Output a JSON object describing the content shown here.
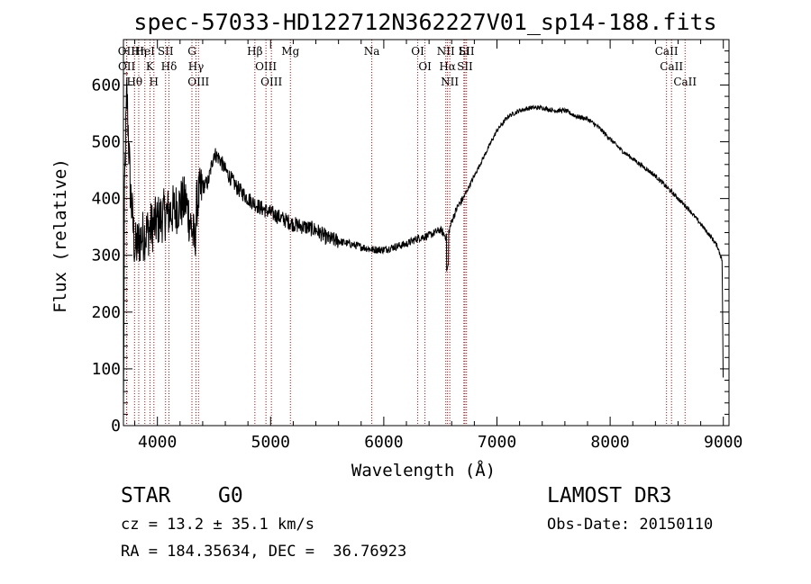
{
  "chart_data": {
    "type": "line",
    "title": "spec-57033-HD122712N362227V01_sp14-188.fits",
    "xlabel": "Wavelength (Å)",
    "ylabel": "Flux (relative)",
    "xlim": [
      3700,
      9050
    ],
    "ylim": [
      0,
      680
    ],
    "xticks": [
      4000,
      5000,
      6000,
      7000,
      8000,
      9000
    ],
    "yticks": [
      0,
      100,
      200,
      300,
      400,
      500,
      600
    ],
    "spectrum_anchor_points": {
      "x": [
        3700,
        3710,
        3730,
        3760,
        3800,
        3850,
        3900,
        3950,
        4000,
        4050,
        4100,
        4150,
        4200,
        4250,
        4300,
        4330,
        4350,
        4400,
        4450,
        4500,
        4550,
        4600,
        4700,
        4800,
        4900,
        5000,
        5100,
        5200,
        5300,
        5400,
        5500,
        5600,
        5700,
        5800,
        5900,
        6000,
        6100,
        6200,
        6300,
        6400,
        6500,
        6560,
        6600,
        6650,
        6700,
        6750,
        6800,
        6900,
        7000,
        7100,
        7200,
        7300,
        7400,
        7500,
        7600,
        7700,
        7800,
        7900,
        8000,
        8100,
        8200,
        8300,
        8400,
        8500,
        8600,
        8700,
        8800,
        8900,
        8950,
        8990,
        9000
      ],
      "y": [
        20,
        420,
        590,
        420,
        310,
        330,
        340,
        350,
        360,
        370,
        375,
        380,
        390,
        395,
        350,
        320,
        395,
        420,
        430,
        480,
        470,
        450,
        420,
        400,
        385,
        375,
        365,
        355,
        350,
        345,
        330,
        325,
        320,
        315,
        310,
        310,
        315,
        320,
        330,
        335,
        345,
        330,
        360,
        385,
        400,
        420,
        440,
        480,
        520,
        545,
        555,
        560,
        560,
        555,
        555,
        545,
        540,
        525,
        505,
        485,
        470,
        455,
        440,
        420,
        400,
        380,
        355,
        330,
        315,
        290,
        30
      ]
    },
    "spectral_lines": [
      {
        "label": "Hθ",
        "wavelength": 3798
      },
      {
        "label": "OII",
        "wavelength": 3727
      },
      {
        "label": "OII",
        "wavelength": 3729
      },
      {
        "label": "Hη",
        "wavelength": 3835
      },
      {
        "label": "HeI",
        "wavelength": 3889
      },
      {
        "label": "K",
        "wavelength": 3934
      },
      {
        "label": "H",
        "wavelength": 3969
      },
      {
        "label": "SII",
        "wavelength": 4072
      },
      {
        "label": "Hδ",
        "wavelength": 4102
      },
      {
        "label": "G",
        "wavelength": 4305
      },
      {
        "label": "Hγ",
        "wavelength": 4341
      },
      {
        "label": "OIII",
        "wavelength": 4363
      },
      {
        "label": "Hβ",
        "wavelength": 4861
      },
      {
        "label": "OIII",
        "wavelength": 4959
      },
      {
        "label": "OIII",
        "wavelength": 5007
      },
      {
        "label": "Mg",
        "wavelength": 5175
      },
      {
        "label": "Na",
        "wavelength": 5894
      },
      {
        "label": "OI",
        "wavelength": 6300
      },
      {
        "label": "OI",
        "wavelength": 6364
      },
      {
        "label": "NII",
        "wavelength": 6548
      },
      {
        "label": "Hα",
        "wavelength": 6563
      },
      {
        "label": "NII",
        "wavelength": 6583
      },
      {
        "label": "Li",
        "wavelength": 6708
      },
      {
        "label": "SII",
        "wavelength": 6717
      },
      {
        "label": "SII",
        "wavelength": 6731
      },
      {
        "label": "CaII",
        "wavelength": 8498
      },
      {
        "label": "CaII",
        "wavelength": 8542
      },
      {
        "label": "CaII",
        "wavelength": 8662
      }
    ]
  },
  "info": {
    "class_label": "STAR",
    "subclass": "G0",
    "redshift": "cz = 13.2 ± 35.1 km/s",
    "coords": "RA = 184.35634, DEC =  36.76923",
    "survey": "LAMOST DR3",
    "obs_date": "Obs-Date: 20150110"
  },
  "colors": {
    "spectrum": "#000000",
    "line_markers": "#cc0000",
    "axes": "#000000"
  }
}
